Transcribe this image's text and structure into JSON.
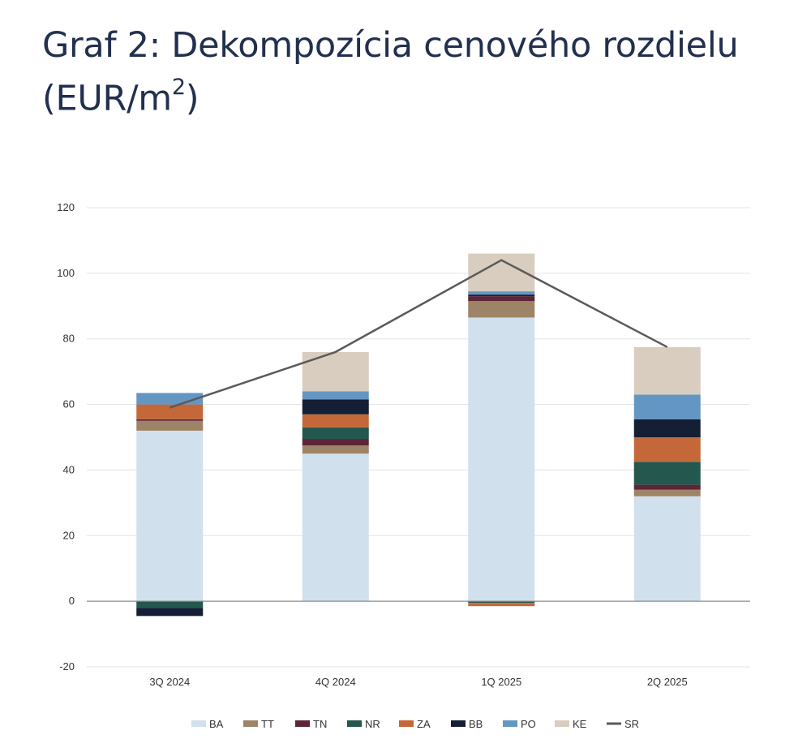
{
  "title": {
    "main": "Graf 2: Dekompozícia cenového rozdielu",
    "unit_prefix": "(EUR/m",
    "unit_sup": "2",
    "unit_suffix": ")"
  },
  "chart_data": {
    "type": "bar",
    "stacked": true,
    "categories": [
      "3Q 2024",
      "4Q 2024",
      "1Q 2025",
      "2Q 2025"
    ],
    "ylim": [
      -20,
      120
    ],
    "yticks": [
      -20,
      0,
      20,
      40,
      60,
      80,
      100,
      120
    ],
    "ytick_labels": [
      "-20",
      "0",
      "20",
      "40",
      "60",
      "80",
      "100",
      "120"
    ],
    "grid": true,
    "legend_position": "bottom",
    "series": [
      {
        "name": "BA",
        "color": "#d1e0ed",
        "values": [
          52,
          45,
          86.5,
          32
        ]
      },
      {
        "name": "TT",
        "color": "#9e8466",
        "values": [
          3,
          2.5,
          5,
          2
        ]
      },
      {
        "name": "TN",
        "color": "#5e2437",
        "values": [
          0.5,
          2,
          1.5,
          1.5
        ]
      },
      {
        "name": "NR",
        "color": "#24574d",
        "values": [
          -2,
          3.5,
          -0.5,
          7
        ]
      },
      {
        "name": "ZA",
        "color": "#c4683a",
        "values": [
          4.5,
          4,
          -1,
          7.5
        ]
      },
      {
        "name": "BB",
        "color": "#141e35",
        "values": [
          -2.5,
          4.5,
          0.5,
          5.5
        ]
      },
      {
        "name": "PO",
        "color": "#6496c4",
        "values": [
          3.5,
          2.5,
          1,
          7.5
        ]
      },
      {
        "name": "KE",
        "color": "#d9cdbf",
        "values": [
          0,
          12,
          11.5,
          14.5
        ]
      }
    ],
    "line_series": {
      "name": "SR",
      "color": "#5a5a5a",
      "values": [
        59,
        76,
        104,
        77.5
      ]
    }
  }
}
